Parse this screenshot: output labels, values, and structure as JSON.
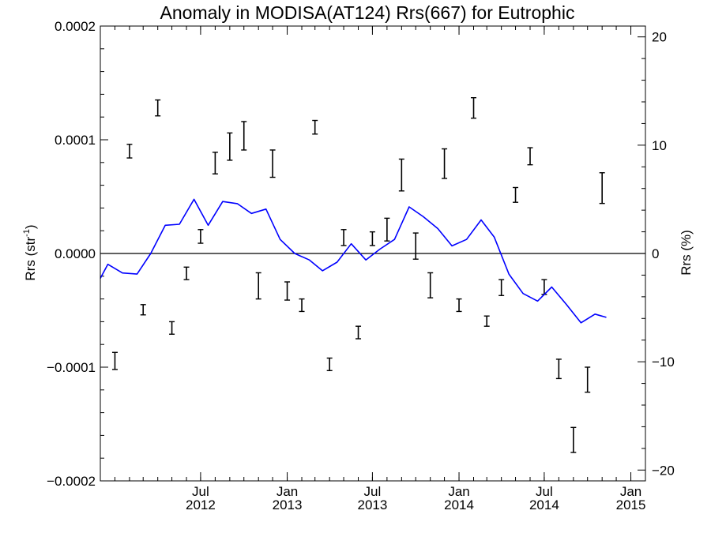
{
  "chart_data": {
    "type": "line",
    "title": "Anomaly in MODISA(AT124) Rrs(667) for Eutrophic",
    "ylabel_left": "Rrs (str",
    "ylabel_left_sup": "-1",
    "ylabel_left_close": ")",
    "ylabel_right": "Rrs (%)",
    "ylim_left": [
      -0.0002,
      0.0002
    ],
    "ylim_right": [
      -21,
      21
    ],
    "yticks_left": [
      {
        "value": 0.0002,
        "label": "0.0002"
      },
      {
        "value": 0.0001,
        "label": "0.0001"
      },
      {
        "value": 0.0,
        "label": "0.0000"
      },
      {
        "value": -0.0001,
        "label": "−0.0001"
      },
      {
        "value": -0.0002,
        "label": "−0.0002"
      }
    ],
    "yticks_right": [
      {
        "value": 20,
        "label": "20"
      },
      {
        "value": 10,
        "label": "10"
      },
      {
        "value": 0,
        "label": "0"
      },
      {
        "value": -10,
        "label": "−10"
      },
      {
        "value": -20,
        "label": "−20"
      }
    ],
    "xlim": [
      "2011-12-01",
      "2015-02-01"
    ],
    "xticks": [
      {
        "date": "2012-07-01",
        "month": "Jul",
        "year": "2012"
      },
      {
        "date": "2013-01-01",
        "month": "Jan",
        "year": "2013"
      },
      {
        "date": "2013-07-01",
        "month": "Jul",
        "year": "2013"
      },
      {
        "date": "2014-01-01",
        "month": "Jan",
        "year": "2014"
      },
      {
        "date": "2014-07-01",
        "month": "Jul",
        "year": "2014"
      },
      {
        "date": "2015-01-01",
        "month": "Jan",
        "year": "2015"
      }
    ],
    "zero_line": true,
    "series": [
      {
        "kind": "errorbar",
        "color": "#000000",
        "points": [
          {
            "date": "2012-01-01",
            "low": -0.000102,
            "high": -8.7e-05
          },
          {
            "date": "2012-02-01",
            "low": 8.4e-05,
            "high": 9.6e-05
          },
          {
            "date": "2012-03-01",
            "low": -5.4e-05,
            "high": -4.5e-05
          },
          {
            "date": "2012-04-01",
            "low": 0.000121,
            "high": 0.000135
          },
          {
            "date": "2012-05-01",
            "low": -7.1e-05,
            "high": -6e-05
          },
          {
            "date": "2012-06-01",
            "low": -2.3e-05,
            "high": -1.2e-05
          },
          {
            "date": "2012-07-01",
            "low": 9e-06,
            "high": 2.1e-05
          },
          {
            "date": "2012-08-01",
            "low": 7e-05,
            "high": 8.9e-05
          },
          {
            "date": "2012-09-01",
            "low": 8.2e-05,
            "high": 0.000106
          },
          {
            "date": "2012-10-01",
            "low": 9.1e-05,
            "high": 0.000116
          },
          {
            "date": "2012-11-01",
            "low": -4e-05,
            "high": -1.7e-05
          },
          {
            "date": "2012-12-01",
            "low": 6.7e-05,
            "high": 9.1e-05
          },
          {
            "date": "2013-01-01",
            "low": -4.1e-05,
            "high": -2.5e-05
          },
          {
            "date": "2013-02-01",
            "low": -5.1e-05,
            "high": -4e-05
          },
          {
            "date": "2013-03-01",
            "low": 0.000105,
            "high": 0.000117
          },
          {
            "date": "2013-04-01",
            "low": -0.000103,
            "high": -9.2e-05
          },
          {
            "date": "2013-05-01",
            "low": 7e-06,
            "high": 2.1e-05
          },
          {
            "date": "2013-06-01",
            "low": -7.5e-05,
            "high": -6.4e-05
          },
          {
            "date": "2013-07-01",
            "low": 7e-06,
            "high": 1.9e-05
          },
          {
            "date": "2013-08-01",
            "low": 1.1e-05,
            "high": 3.1e-05
          },
          {
            "date": "2013-09-01",
            "low": 5.5e-05,
            "high": 8.3e-05
          },
          {
            "date": "2013-10-01",
            "low": -5e-06,
            "high": 1.8e-05
          },
          {
            "date": "2013-11-01",
            "low": -3.9e-05,
            "high": -1.7e-05
          },
          {
            "date": "2013-12-01",
            "low": 6.6e-05,
            "high": 9.2e-05
          },
          {
            "date": "2014-01-01",
            "low": -5.1e-05,
            "high": -4e-05
          },
          {
            "date": "2014-02-01",
            "low": 0.000119,
            "high": 0.000137
          },
          {
            "date": "2014-03-01",
            "low": -6.4e-05,
            "high": -5.5e-05
          },
          {
            "date": "2014-04-01",
            "low": -3.7e-05,
            "high": -2.3e-05
          },
          {
            "date": "2014-05-01",
            "low": 4.5e-05,
            "high": 5.8e-05
          },
          {
            "date": "2014-06-01",
            "low": 7.8e-05,
            "high": 9.3e-05
          },
          {
            "date": "2014-07-01",
            "low": -3.6e-05,
            "high": -2.3e-05
          },
          {
            "date": "2014-08-01",
            "low": -0.00011,
            "high": -9.3e-05
          },
          {
            "date": "2014-09-01",
            "low": -0.000175,
            "high": -0.000153
          },
          {
            "date": "2014-10-01",
            "low": -0.000122,
            "high": -0.0001
          },
          {
            "date": "2014-11-01",
            "low": 4.4e-05,
            "high": 7.1e-05
          }
        ]
      },
      {
        "kind": "line",
        "axis": "right",
        "color": "#0000ff",
        "points": [
          {
            "date": "2011-12-01",
            "value": -2.3
          },
          {
            "date": "2011-12-17",
            "value": -1.0
          },
          {
            "date": "2012-01-17",
            "value": -1.8
          },
          {
            "date": "2012-02-17",
            "value": -1.9
          },
          {
            "date": "2012-03-17",
            "value": 0.0
          },
          {
            "date": "2012-04-17",
            "value": 2.6
          },
          {
            "date": "2012-05-17",
            "value": 2.7
          },
          {
            "date": "2012-06-17",
            "value": 5.0
          },
          {
            "date": "2012-07-17",
            "value": 2.6
          },
          {
            "date": "2012-08-17",
            "value": 4.8
          },
          {
            "date": "2012-09-17",
            "value": 4.6
          },
          {
            "date": "2012-10-17",
            "value": 3.7
          },
          {
            "date": "2012-11-17",
            "value": 4.1
          },
          {
            "date": "2012-12-17",
            "value": 1.3
          },
          {
            "date": "2013-01-17",
            "value": 0.0
          },
          {
            "date": "2013-02-17",
            "value": -0.6
          },
          {
            "date": "2013-03-17",
            "value": -1.6
          },
          {
            "date": "2013-04-17",
            "value": -0.8
          },
          {
            "date": "2013-05-17",
            "value": 0.9
          },
          {
            "date": "2013-06-17",
            "value": -0.6
          },
          {
            "date": "2013-07-17",
            "value": 0.4
          },
          {
            "date": "2013-08-17",
            "value": 1.3
          },
          {
            "date": "2013-09-17",
            "value": 4.3
          },
          {
            "date": "2013-10-17",
            "value": 3.4
          },
          {
            "date": "2013-11-17",
            "value": 2.3
          },
          {
            "date": "2013-12-17",
            "value": 0.7
          },
          {
            "date": "2014-01-17",
            "value": 1.3
          },
          {
            "date": "2014-02-17",
            "value": 3.1
          },
          {
            "date": "2014-03-17",
            "value": 1.5
          },
          {
            "date": "2014-04-17",
            "value": -1.9
          },
          {
            "date": "2014-05-17",
            "value": -3.7
          },
          {
            "date": "2014-06-17",
            "value": -4.4
          },
          {
            "date": "2014-07-17",
            "value": -3.1
          },
          {
            "date": "2014-08-17",
            "value": -4.7
          },
          {
            "date": "2014-09-17",
            "value": -6.4
          },
          {
            "date": "2014-10-17",
            "value": -5.6
          },
          {
            "date": "2014-11-10",
            "value": -5.9
          }
        ]
      }
    ]
  }
}
